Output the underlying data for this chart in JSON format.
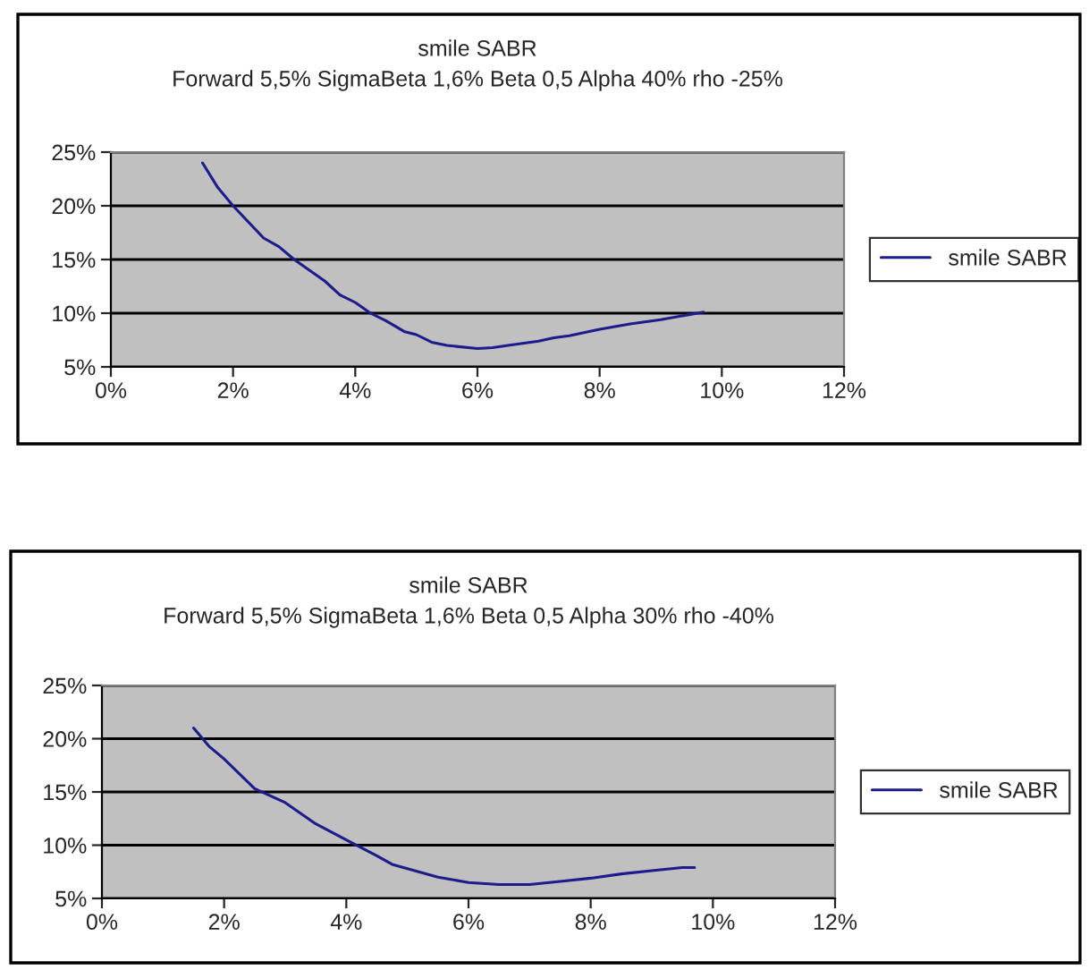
{
  "chart_data": [
    {
      "type": "line",
      "title": "smile SABR",
      "subtitle": "Forward 5,5% SigmaBeta 1,6% Beta 0,5 Alpha 40% rho -25%",
      "series": [
        {
          "name": "smile SABR",
          "color": "#1c1c8c",
          "x": [
            1.5,
            1.75,
            2,
            2.5,
            2.75,
            3,
            3.5,
            3.75,
            4,
            4.25,
            4.5,
            4.8,
            5,
            5.25,
            5.5,
            6,
            6.25,
            6.5,
            7,
            7.25,
            7.5,
            8,
            8.5,
            9,
            9.5,
            9.7
          ],
          "values": [
            24,
            21.7,
            20,
            17,
            16.2,
            15,
            13,
            11.7,
            11,
            10,
            9.3,
            8.3,
            8,
            7.3,
            7,
            6.7,
            6.8,
            7,
            7.4,
            7.7,
            7.9,
            8.5,
            9,
            9.4,
            9.9,
            10.1
          ]
        }
      ],
      "xlim": [
        0,
        12
      ],
      "xticks": [
        {
          "value": 0,
          "label": "0%"
        },
        {
          "value": 2,
          "label": "2%"
        },
        {
          "value": 4,
          "label": "4%"
        },
        {
          "value": 6,
          "label": "6%"
        },
        {
          "value": 8,
          "label": "8%"
        },
        {
          "value": 10,
          "label": "10%"
        },
        {
          "value": 12,
          "label": "12%"
        }
      ],
      "ylim": [
        5,
        25
      ],
      "yticks": [
        {
          "value": 5,
          "label": "5%"
        },
        {
          "value": 10,
          "label": "10%"
        },
        {
          "value": 15,
          "label": "15%"
        },
        {
          "value": 20,
          "label": "20%"
        },
        {
          "value": 25,
          "label": "25%"
        }
      ],
      "grid": "y",
      "legend": "right",
      "marker": "none",
      "line_style": "solid"
    },
    {
      "type": "line",
      "title": "smile SABR",
      "subtitle": "Forward 5,5% SigmaBeta 1,6% Beta 0,5 Alpha 30% rho -40%",
      "series": [
        {
          "name": "smile SABR",
          "color": "#1c1c8c",
          "x": [
            1.5,
            1.75,
            2,
            2.5,
            3,
            3.5,
            4,
            4.5,
            4.75,
            5,
            5.5,
            6,
            6.5,
            7,
            7.5,
            8,
            8.5,
            9,
            9.5,
            9.7
          ],
          "values": [
            21,
            19.3,
            18.1,
            15.3,
            14,
            12,
            10.5,
            9,
            8.2,
            7.8,
            7,
            6.5,
            6.3,
            6.3,
            6.6,
            6.9,
            7.3,
            7.6,
            7.9,
            7.9
          ]
        }
      ],
      "xlim": [
        0,
        12
      ],
      "xticks": [
        {
          "value": 0,
          "label": "0%"
        },
        {
          "value": 2,
          "label": "2%"
        },
        {
          "value": 4,
          "label": "4%"
        },
        {
          "value": 6,
          "label": "6%"
        },
        {
          "value": 8,
          "label": "8%"
        },
        {
          "value": 10,
          "label": "10%"
        },
        {
          "value": 12,
          "label": "12%"
        }
      ],
      "ylim": [
        5,
        25
      ],
      "yticks": [
        {
          "value": 5,
          "label": "5%"
        },
        {
          "value": 10,
          "label": "10%"
        },
        {
          "value": 15,
          "label": "15%"
        },
        {
          "value": 20,
          "label": "20%"
        },
        {
          "value": 25,
          "label": "25%"
        }
      ],
      "grid": "y",
      "legend": "right",
      "marker": "none",
      "line_style": "solid"
    }
  ]
}
